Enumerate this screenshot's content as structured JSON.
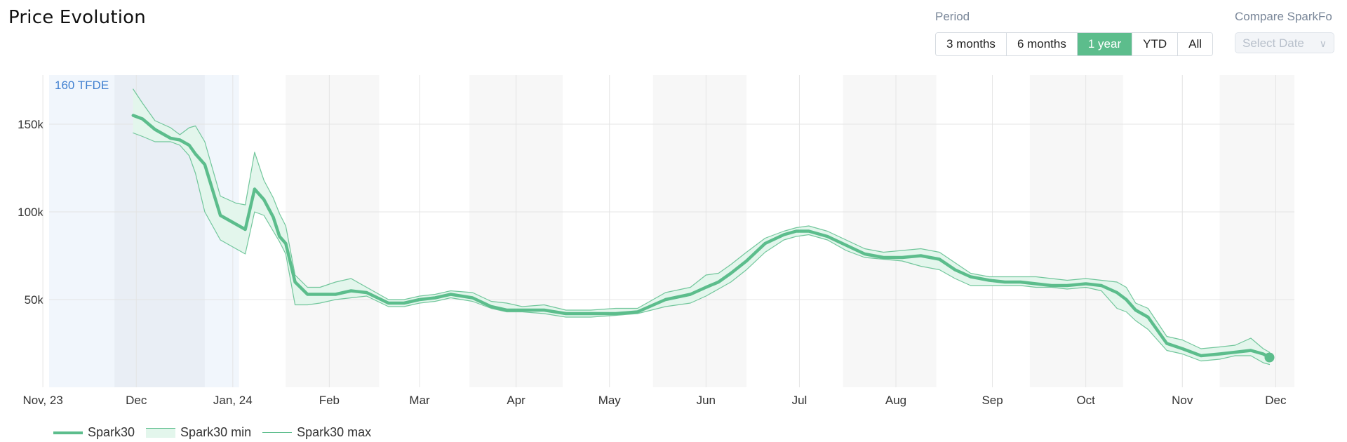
{
  "header": {
    "title": "Price Evolution"
  },
  "period": {
    "label": "Period",
    "options": [
      "3 months",
      "6 months",
      "1 year",
      "YTD",
      "All"
    ],
    "selected": "1 year"
  },
  "compare": {
    "label": "Compare SparkFo",
    "placeholder": "Select Date"
  },
  "colors": {
    "series": "#5cbd8c",
    "accent": "#5cbd8c",
    "band_fill": "#e3f6ec",
    "annotation": "#3f7fd0"
  },
  "chart_data": {
    "type": "area",
    "title": "Price Evolution",
    "annotation": "160 TFDE",
    "x_ticks": [
      "Nov, 23",
      "Dec",
      "Jan, 24",
      "Feb",
      "Mar",
      "Apr",
      "May",
      "Jun",
      "Jul",
      "Aug",
      "Sep",
      "Oct",
      "Nov",
      "Dec"
    ],
    "y_ticks": [
      "50k",
      "100k",
      "150k"
    ],
    "ylim": [
      0,
      178000
    ],
    "xlim": [
      "2023-11-03",
      "2024-12-07"
    ],
    "grid": true,
    "legend_position": "bottom-left",
    "shaded_periods": [
      [
        "2023-11-03",
        "2024-01-03"
      ],
      [
        "2024-01-18",
        "2024-02-17"
      ],
      [
        "2024-03-17",
        "2024-04-16"
      ],
      [
        "2024-05-15",
        "2024-06-14"
      ],
      [
        "2024-07-15",
        "2024-08-14"
      ],
      [
        "2024-09-13",
        "2024-10-13"
      ],
      [
        "2024-11-13",
        "2024-12-07"
      ]
    ],
    "highlight_periods": [
      [
        "2023-11-24",
        "2023-12-23"
      ]
    ],
    "x": [
      "2023-11-30",
      "2023-12-03",
      "2023-12-07",
      "2023-12-12",
      "2023-12-15",
      "2023-12-18",
      "2023-12-20",
      "2023-12-23",
      "2023-12-28",
      "2024-01-02",
      "2024-01-05",
      "2024-01-08",
      "2024-01-11",
      "2024-01-14",
      "2024-01-16",
      "2024-01-18",
      "2024-01-21",
      "2024-01-25",
      "2024-01-29",
      "2024-02-03",
      "2024-02-08",
      "2024-02-13",
      "2024-02-20",
      "2024-02-25",
      "2024-03-01",
      "2024-03-06",
      "2024-03-11",
      "2024-03-18",
      "2024-03-24",
      "2024-03-29",
      "2024-04-03",
      "2024-04-10",
      "2024-04-17",
      "2024-04-25",
      "2024-05-03",
      "2024-05-10",
      "2024-05-19",
      "2024-05-27",
      "2024-06-01",
      "2024-06-05",
      "2024-06-09",
      "2024-06-14",
      "2024-06-20",
      "2024-06-26",
      "2024-06-30",
      "2024-07-04",
      "2024-07-10",
      "2024-07-16",
      "2024-07-22",
      "2024-07-28",
      "2024-08-03",
      "2024-08-09",
      "2024-08-15",
      "2024-08-20",
      "2024-08-25",
      "2024-08-31",
      "2024-09-05",
      "2024-09-10",
      "2024-09-15",
      "2024-09-20",
      "2024-09-25",
      "2024-10-01",
      "2024-10-06",
      "2024-10-11",
      "2024-10-14",
      "2024-10-17",
      "2024-10-21",
      "2024-10-27",
      "2024-11-01",
      "2024-11-07",
      "2024-11-13",
      "2024-11-18",
      "2024-11-23",
      "2024-11-27",
      "2024-11-29"
    ],
    "series": [
      {
        "name": "Spark30",
        "role": "main",
        "values": [
          155000,
          153000,
          147000,
          142000,
          141000,
          138000,
          133000,
          127000,
          98000,
          93000,
          90000,
          113000,
          107000,
          97000,
          86000,
          82000,
          60000,
          53000,
          53000,
          53000,
          55000,
          54000,
          48000,
          48000,
          50000,
          51000,
          53000,
          51000,
          46000,
          44000,
          44000,
          44000,
          42000,
          42000,
          42000,
          43000,
          50000,
          53000,
          57000,
          60000,
          65000,
          72000,
          82000,
          87000,
          89000,
          89000,
          86000,
          81000,
          76000,
          74000,
          74000,
          75000,
          73000,
          67000,
          63000,
          61000,
          60000,
          60000,
          59000,
          58000,
          58000,
          59000,
          58000,
          54000,
          50000,
          44000,
          40000,
          25000,
          22000,
          18000,
          19000,
          20000,
          21000,
          19000,
          17000
        ]
      },
      {
        "name": "Spark30 min",
        "role": "min",
        "values": [
          145000,
          143000,
          140000,
          140000,
          138000,
          132000,
          122000,
          100000,
          84000,
          79000,
          76000,
          100000,
          98000,
          89000,
          83000,
          76000,
          47000,
          47000,
          48000,
          50000,
          51000,
          52000,
          46000,
          46000,
          48000,
          49000,
          51000,
          49000,
          45000,
          43000,
          43000,
          42000,
          40000,
          40000,
          41000,
          42000,
          46000,
          48000,
          52000,
          56000,
          60000,
          67000,
          77000,
          84000,
          86000,
          87000,
          84000,
          78000,
          74000,
          73000,
          72000,
          69000,
          67000,
          62000,
          58000,
          58000,
          58000,
          58000,
          57000,
          57000,
          56000,
          57000,
          55000,
          45000,
          43000,
          38000,
          33000,
          21000,
          19000,
          15000,
          16000,
          18000,
          18000,
          14000,
          13000
        ]
      },
      {
        "name": "Spark30 max",
        "role": "max",
        "values": [
          170000,
          162000,
          152000,
          148000,
          144000,
          148000,
          149000,
          140000,
          109000,
          105000,
          104000,
          134000,
          118000,
          108000,
          99000,
          92000,
          64000,
          57000,
          57000,
          60000,
          62000,
          57000,
          50000,
          50000,
          52000,
          53000,
          55000,
          54000,
          49000,
          48000,
          46000,
          47000,
          44000,
          44000,
          45000,
          45000,
          54000,
          57000,
          64000,
          65000,
          70000,
          77000,
          85000,
          89000,
          91000,
          92000,
          89000,
          84000,
          79000,
          77000,
          78000,
          79000,
          77000,
          71000,
          65000,
          63000,
          63000,
          63000,
          63000,
          62000,
          61000,
          62000,
          61000,
          60000,
          57000,
          48000,
          45000,
          29000,
          27000,
          22000,
          23000,
          24000,
          28000,
          22000,
          20000
        ]
      }
    ]
  },
  "legend": [
    "Spark30",
    "Spark30 min",
    "Spark30 max"
  ]
}
